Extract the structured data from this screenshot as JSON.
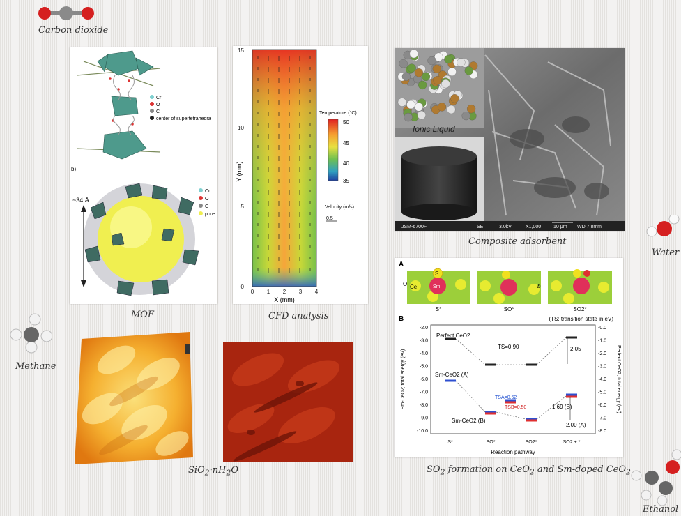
{
  "molecules": {
    "co2": "Carbon dioxide",
    "water": "Water",
    "methane": "Methane",
    "ethanol": "Ethanol"
  },
  "captions": {
    "mof": "MOF",
    "cfd": "CFD analysis",
    "composite": "Composite adsorbent",
    "sio2_a": "SiO",
    "sio2_sub": "2",
    "sio2_b": "·nH",
    "sio2_sub2": "2",
    "sio2_c": "O",
    "so2_parts": [
      "SO",
      "2",
      " formation on CeO",
      "2",
      " and Sm-doped CeO",
      "2"
    ]
  },
  "mof": {
    "legend_top": [
      "Cr",
      "O",
      "C",
      "center of supertetrahedra"
    ],
    "label_b": "b)",
    "size_label": "~34 Å",
    "legend_bottom": [
      "Cr",
      "O",
      "C",
      "pore"
    ]
  },
  "cfd": {
    "y_ticks": [
      "15",
      "10",
      "5",
      "0"
    ],
    "x_ticks": [
      "0",
      "1",
      "2",
      "3",
      "4"
    ],
    "ylabel": "Y (mm)",
    "xlabel": "X (mm)",
    "temp_title": "Temperature (°C)",
    "temp_ticks": [
      "50",
      "45",
      "40",
      "35"
    ],
    "vel_title": "Velocity (m/s)",
    "vel_scale": "0.5"
  },
  "composite": {
    "ionic_label": "Ionic Liquid",
    "sem_bar": [
      "JSM-6700F",
      "SEI",
      "3.0kV",
      "X1,000",
      "10 μm",
      "WD 7.8mm"
    ]
  },
  "so2chart": {
    "panel_a": "A",
    "panel_b": "B",
    "atom_labels": [
      "O",
      "S",
      "Ce",
      "Sm"
    ],
    "struct_labels": [
      "S*",
      "SO*",
      "SO2*"
    ],
    "b_label": "b",
    "ts_note": "(TS: transition state in eV)",
    "perfect": "Perfect CeO2",
    "smA": "Sm-CeO2 (A)",
    "smB": "Sm-CeO2 (B)",
    "ts": "TS=0.90",
    "tsA": "TSA=0.62",
    "tsB": "TSB=0.50",
    "e205": "2.05",
    "e169": "1.69 (B)",
    "e200": "2.00 (A)",
    "yleft": "Sm-CeO2; total energy (eV)",
    "yright": "Perfect CeO2; total energy (eV)",
    "xlabel": "Reaction pathway",
    "left_ticks": [
      "-2.0",
      "-3.0",
      "-4.0",
      "-5.0",
      "-6.0",
      "-7.0",
      "-8.0",
      "-9.0",
      "-10.0"
    ],
    "right_ticks": [
      "-0.0",
      "-1.0",
      "-2.0",
      "-3.0",
      "-4.0",
      "-5.0",
      "-6.0",
      "-7.0",
      "-8.0"
    ],
    "x_ticks": [
      "S*",
      "SO*",
      "SO2*",
      "SO2 + *"
    ]
  }
}
